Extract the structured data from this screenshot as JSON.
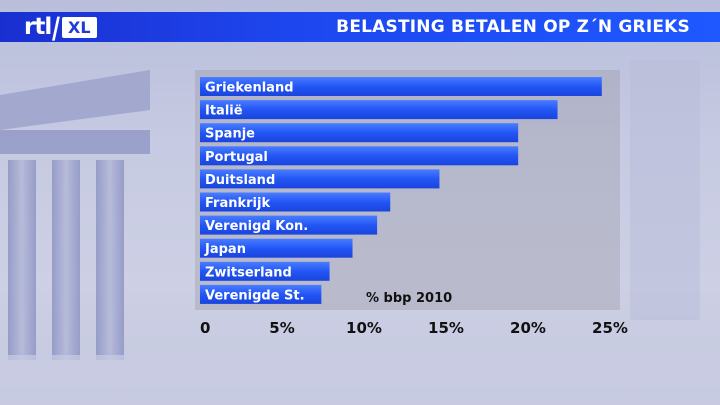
{
  "logo": {
    "brand": "rtl",
    "sub": "XL"
  },
  "header": {
    "title": "BELASTING BETALEN OP Z´N GRIEKS"
  },
  "chart_data": {
    "type": "bar",
    "orientation": "horizontal",
    "categories": [
      "Griekenland",
      "Italië",
      "Spanje",
      "Portugal",
      "Duitsland",
      "Frankrijk",
      "Verenigd Kon.",
      "Japan",
      "Zwitserland",
      "Verenigde St."
    ],
    "values": [
      24.5,
      21.8,
      19.4,
      19.4,
      14.6,
      11.6,
      10.8,
      9.3,
      7.9,
      7.4
    ],
    "xlim": [
      0,
      25
    ],
    "xticks": [
      "0",
      "5%",
      "10%",
      "15%",
      "20%",
      "25%"
    ],
    "annotation": "% bbp 2010",
    "colors": {
      "bar": "#1f4ff2",
      "bar_light": "#3d73ff"
    }
  }
}
